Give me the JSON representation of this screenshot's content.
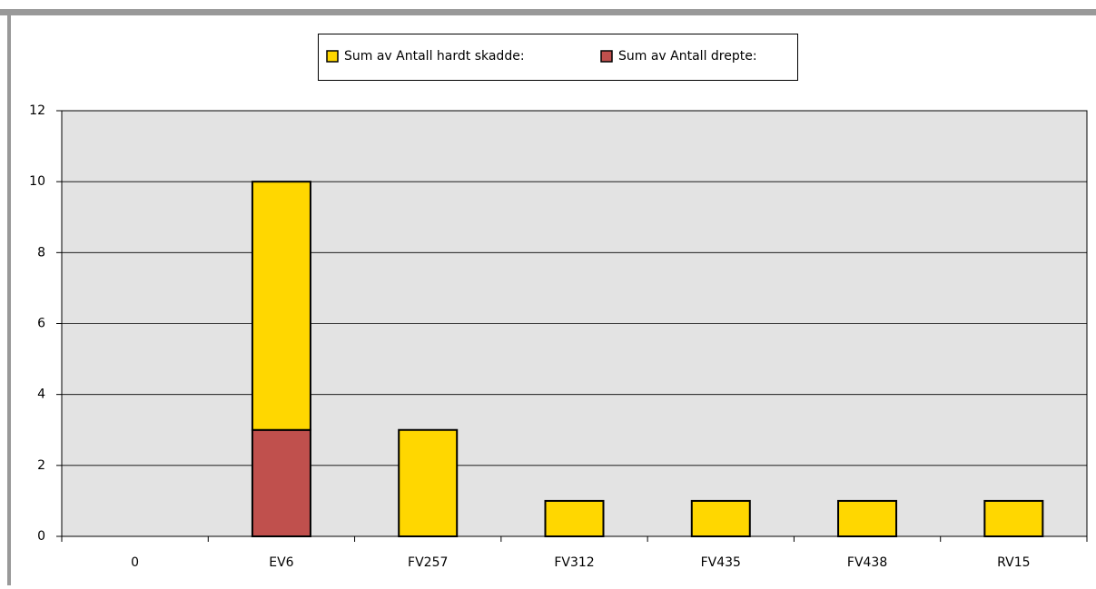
{
  "chart_data": {
    "type": "bar",
    "stacked": true,
    "categories": [
      "0",
      "EV6",
      "FV257",
      "FV312",
      "FV435",
      "FV438",
      "RV15"
    ],
    "series": [
      {
        "name": "Sum av Antall hardt skadde:",
        "color": "#ffd700",
        "values": [
          0,
          7,
          3,
          1,
          1,
          1,
          1
        ]
      },
      {
        "name": "Sum av Antall drepte:",
        "color": "#c0504d",
        "values": [
          0,
          3,
          0,
          0,
          0,
          0,
          0
        ]
      }
    ],
    "ylim": [
      0,
      12
    ],
    "yticks": [
      0,
      2,
      4,
      6,
      8,
      10,
      12
    ],
    "grid": true,
    "legend": "top"
  }
}
